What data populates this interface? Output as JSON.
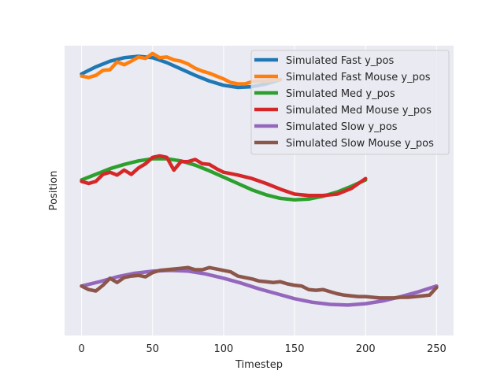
{
  "chart_data": {
    "type": "line",
    "xlabel": "Timestep",
    "ylabel": "Position",
    "xlim": [
      -12,
      262
    ],
    "ylim": [
      -2.7,
      1.4
    ],
    "xticks": [
      0,
      50,
      100,
      150,
      200,
      250
    ],
    "yticks_visible": false,
    "grid": true,
    "background": "#eaeaf2",
    "grid_color": "#ffffff",
    "legend_position": "top-right",
    "series": [
      {
        "name": "Simulated Fast y_pos",
        "color": "#1f77b4",
        "x": [
          0,
          10,
          20,
          30,
          40,
          50,
          60,
          70,
          80,
          90,
          100,
          110,
          120,
          130,
          140
        ],
        "y": [
          1.0,
          1.1,
          1.18,
          1.23,
          1.25,
          1.23,
          1.16,
          1.07,
          0.98,
          0.9,
          0.84,
          0.81,
          0.82,
          0.86,
          0.92
        ]
      },
      {
        "name": "Simulated Fast Mouse y_pos",
        "color": "#ff7f0e",
        "x": [
          0,
          5,
          10,
          15,
          20,
          25,
          30,
          35,
          40,
          45,
          50,
          55,
          60,
          65,
          70,
          75,
          80,
          85,
          90,
          95,
          100,
          105,
          110,
          115,
          120,
          125,
          130,
          135,
          140
        ],
        "y": [
          0.97,
          0.95,
          0.98,
          1.05,
          1.06,
          1.17,
          1.13,
          1.18,
          1.24,
          1.22,
          1.29,
          1.23,
          1.24,
          1.2,
          1.18,
          1.14,
          1.08,
          1.04,
          1.01,
          0.97,
          0.93,
          0.88,
          0.86,
          0.86,
          0.89,
          0.9,
          0.9,
          0.91,
          0.92
        ]
      },
      {
        "name": "Simulated Med y_pos",
        "color": "#2ca02c",
        "x": [
          0,
          10,
          20,
          30,
          40,
          50,
          60,
          70,
          80,
          90,
          100,
          110,
          120,
          130,
          140,
          150,
          160,
          170,
          180,
          190,
          200
        ],
        "y": [
          -0.5,
          -0.42,
          -0.34,
          -0.28,
          -0.23,
          -0.2,
          -0.2,
          -0.23,
          -0.29,
          -0.37,
          -0.46,
          -0.55,
          -0.64,
          -0.71,
          -0.76,
          -0.78,
          -0.77,
          -0.73,
          -0.67,
          -0.59,
          -0.5
        ]
      },
      {
        "name": "Simulated Med Mouse y_pos",
        "color": "#d62728",
        "x": [
          0,
          5,
          10,
          15,
          20,
          25,
          30,
          35,
          40,
          45,
          50,
          55,
          60,
          65,
          70,
          75,
          80,
          85,
          90,
          95,
          100,
          110,
          120,
          130,
          140,
          150,
          160,
          170,
          180,
          190,
          200
        ],
        "y": [
          -0.52,
          -0.55,
          -0.52,
          -0.42,
          -0.39,
          -0.43,
          -0.36,
          -0.42,
          -0.33,
          -0.27,
          -0.18,
          -0.16,
          -0.18,
          -0.36,
          -0.24,
          -0.24,
          -0.21,
          -0.27,
          -0.28,
          -0.34,
          -0.39,
          -0.43,
          -0.48,
          -0.55,
          -0.63,
          -0.7,
          -0.72,
          -0.72,
          -0.7,
          -0.62,
          -0.48
        ]
      },
      {
        "name": "Simulated Slow y_pos",
        "color": "#9467bd",
        "x": [
          0,
          12.5,
          25,
          37.5,
          50,
          62.5,
          75,
          87.5,
          100,
          112.5,
          125,
          137.5,
          150,
          162.5,
          175,
          187.5,
          200,
          212.5,
          225,
          237.5,
          250
        ],
        "y": [
          -2.0,
          -1.94,
          -1.87,
          -1.82,
          -1.79,
          -1.78,
          -1.79,
          -1.83,
          -1.89,
          -1.96,
          -2.04,
          -2.11,
          -2.18,
          -2.23,
          -2.26,
          -2.27,
          -2.25,
          -2.21,
          -2.15,
          -2.08,
          -2.0
        ]
      },
      {
        "name": "Simulated Slow Mouse y_pos",
        "color": "#8c564b",
        "x": [
          0,
          5,
          10,
          15,
          20,
          25,
          30,
          35,
          40,
          45,
          50,
          55,
          60,
          65,
          70,
          75,
          80,
          85,
          90,
          95,
          100,
          105,
          110,
          115,
          120,
          125,
          130,
          135,
          140,
          145,
          150,
          155,
          160,
          165,
          170,
          175,
          180,
          185,
          190,
          195,
          200,
          205,
          210,
          215,
          220,
          225,
          230,
          235,
          240,
          245,
          250
        ],
        "y": [
          -2.0,
          -2.05,
          -2.07,
          -1.99,
          -1.89,
          -1.95,
          -1.88,
          -1.86,
          -1.85,
          -1.87,
          -1.81,
          -1.78,
          -1.77,
          -1.76,
          -1.75,
          -1.74,
          -1.77,
          -1.77,
          -1.74,
          -1.76,
          -1.78,
          -1.8,
          -1.86,
          -1.88,
          -1.9,
          -1.93,
          -1.94,
          -1.95,
          -1.94,
          -1.97,
          -1.99,
          -2.0,
          -2.05,
          -2.06,
          -2.05,
          -2.08,
          -2.11,
          -2.13,
          -2.14,
          -2.15,
          -2.15,
          -2.16,
          -2.17,
          -2.17,
          -2.17,
          -2.16,
          -2.16,
          -2.15,
          -2.14,
          -2.13,
          -2.02
        ]
      }
    ]
  }
}
